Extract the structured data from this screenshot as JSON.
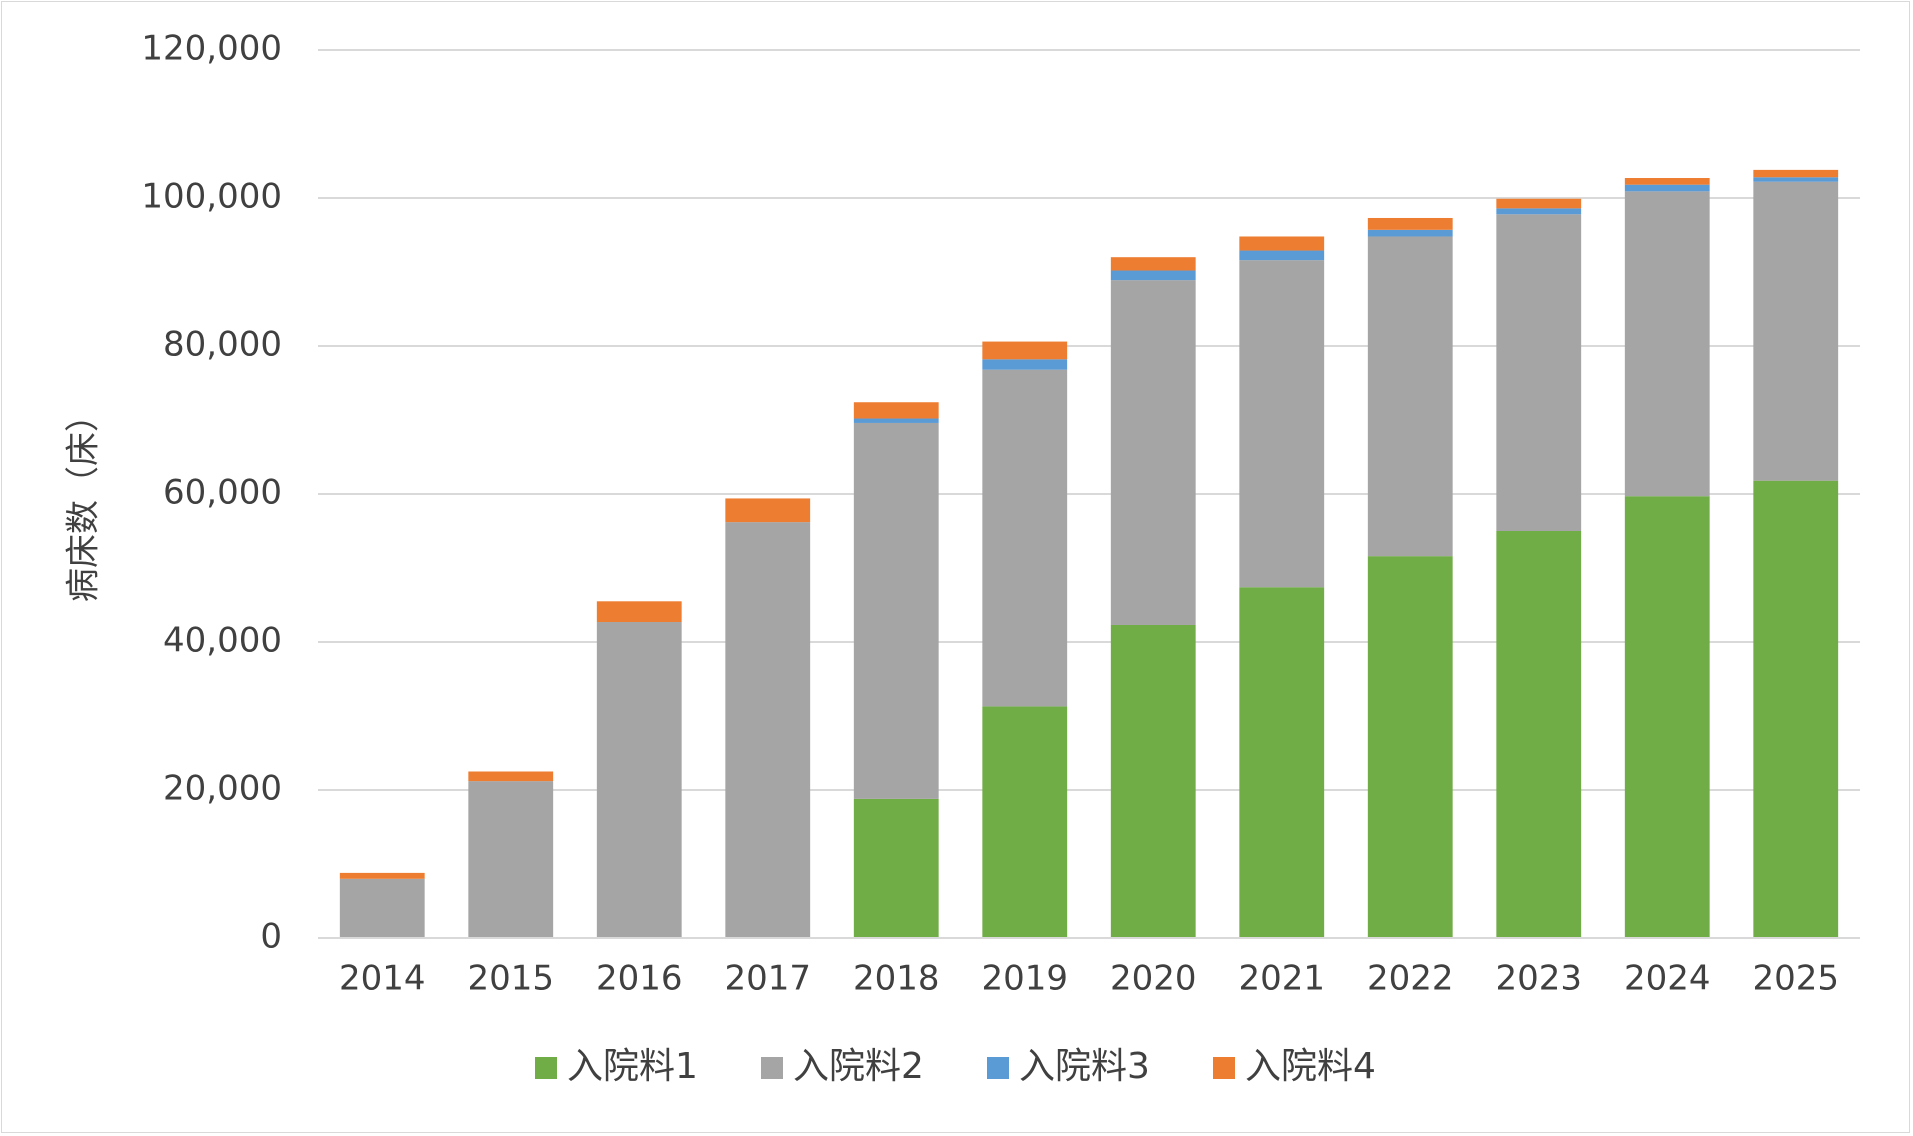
{
  "chart_data": {
    "type": "bar",
    "stacked": true,
    "title": "",
    "xlabel": "",
    "ylabel": "病床数（床）",
    "ylim": [
      0,
      120000
    ],
    "yticks": [
      0,
      20000,
      40000,
      60000,
      80000,
      100000,
      120000
    ],
    "ytick_labels": [
      "0",
      "20,000",
      "40,000",
      "60,000",
      "80,000",
      "100,000",
      "120,000"
    ],
    "grid": true,
    "legend_position": "bottom",
    "categories": [
      "2014",
      "2015",
      "2016",
      "2017",
      "2018",
      "2019",
      "2020",
      "2021",
      "2022",
      "2023",
      "2024",
      "2025"
    ],
    "series": [
      {
        "name": "入院料1",
        "color": "#70AD47",
        "values": [
          0,
          0,
          0,
          0,
          18800,
          31300,
          42300,
          47400,
          51600,
          55000,
          59700,
          61800
        ]
      },
      {
        "name": "入院料2",
        "color": "#A5A5A5",
        "values": [
          8000,
          21200,
          42700,
          56200,
          50800,
          45500,
          46600,
          44200,
          43200,
          42800,
          41200,
          40400
        ]
      },
      {
        "name": "入院料3",
        "color": "#5B9BD5",
        "values": [
          0,
          0,
          0,
          0,
          600,
          1400,
          1300,
          1300,
          900,
          800,
          900,
          600
        ]
      },
      {
        "name": "入院料4",
        "color": "#ED7D31",
        "values": [
          800,
          1300,
          2800,
          3200,
          2200,
          2400,
          1800,
          1900,
          1600,
          1300,
          900,
          1000
        ]
      }
    ]
  }
}
